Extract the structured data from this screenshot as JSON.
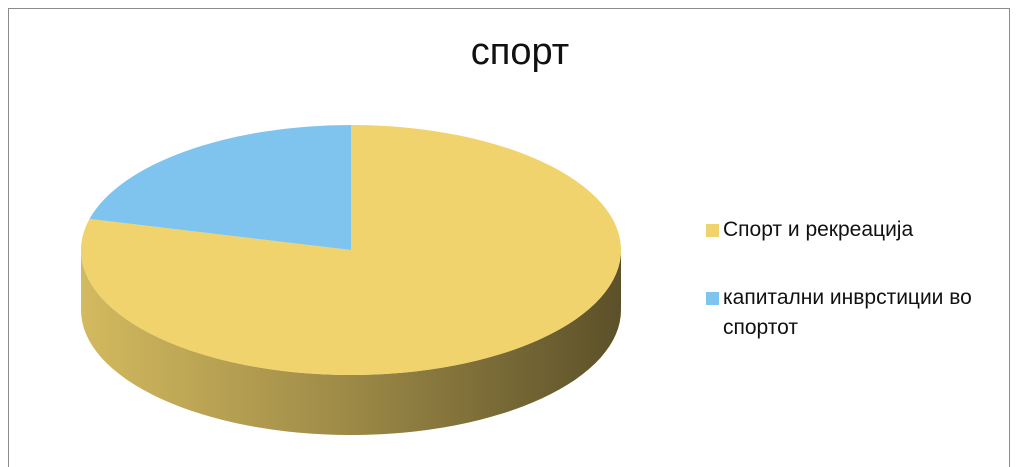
{
  "chart_data": {
    "type": "pie",
    "title": "спорт",
    "categories": [
      "Спорт и рекреација",
      "капитални инврстиции во спортот"
    ],
    "values": [
      79,
      21
    ],
    "colors": [
      "#f0d36c",
      "#7fc4ef"
    ],
    "legend": "right"
  }
}
